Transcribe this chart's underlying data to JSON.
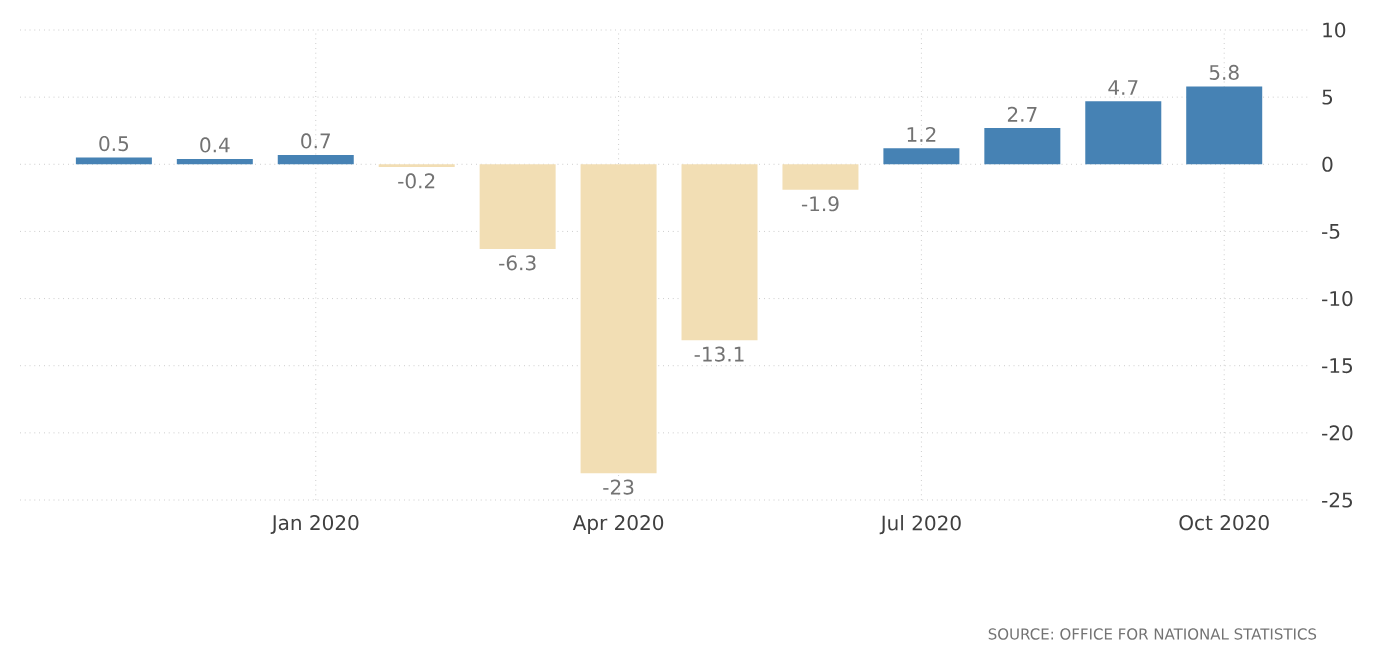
{
  "chart_data": {
    "type": "bar",
    "categories": [
      null,
      null,
      "Jan 2020",
      null,
      null,
      "Apr 2020",
      null,
      null,
      "Jul 2020",
      null,
      null,
      "Oct 2020"
    ],
    "values": [
      0.5,
      0.4,
      0.7,
      -0.2,
      -6.3,
      -23,
      -13.1,
      -1.9,
      1.2,
      2.7,
      4.7,
      5.8
    ],
    "colors": [
      "#4682b4",
      "#4682b4",
      "#4682b4",
      "#f2deb4",
      "#f2deb4",
      "#f2deb4",
      "#f2deb4",
      "#f2deb4",
      "#4682b4",
      "#4682b4",
      "#4682b4",
      "#4682b4"
    ],
    "ylim": [
      -25,
      10
    ],
    "yticks": [
      -25,
      -20,
      -15,
      -10,
      -5,
      0,
      5,
      10
    ],
    "grid": true,
    "data_labels": true,
    "annotations": [
      "SOURCE: OFFICE FOR NATIONAL STATISTICS"
    ]
  }
}
